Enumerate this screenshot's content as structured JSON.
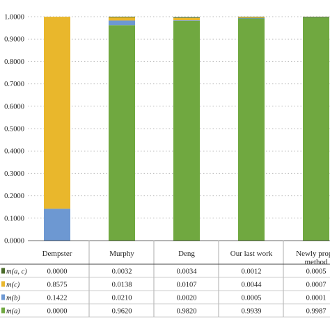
{
  "chart_data": {
    "type": "bar",
    "stacked": true,
    "categories": [
      "Dempster",
      "Murphy",
      "Deng",
      "Our last work",
      "Newly propo\nmethod"
    ],
    "category_lines": [
      [
        "Dempster"
      ],
      [
        "Murphy"
      ],
      [
        "Deng"
      ],
      [
        "Our last work"
      ],
      [
        "Newly propo",
        "method"
      ]
    ],
    "ylim": [
      0,
      1
    ],
    "ytick_values": [
      0,
      0.1,
      0.2,
      0.3,
      0.4,
      0.5,
      0.6,
      0.7,
      0.8,
      0.9,
      1.0
    ],
    "ytick_labels": [
      "0.0000",
      "0.1000",
      "0.2000",
      "0.3000",
      "0.4000",
      "0.5000",
      "0.6000",
      "0.7000",
      "0.8000",
      "0.9000",
      "1.0000"
    ],
    "grid": "horizontal dotted",
    "series_stack_order": [
      "m(a)",
      "m(b)",
      "m(c)",
      "m(a, c)"
    ],
    "series": [
      {
        "key": "m(a, c)",
        "label_main": "m",
        "label_args": "(a, c)",
        "color": "#4a6b2a",
        "values": [
          0.0,
          0.0032,
          0.0034,
          0.0012,
          0.0005
        ],
        "value_labels": [
          "0.0000",
          "0.0032",
          "0.0034",
          "0.0012",
          "0.0005"
        ]
      },
      {
        "key": "m(c)",
        "label_main": "m",
        "label_args": "(c)",
        "color": "#e9b72c",
        "values": [
          0.8575,
          0.0138,
          0.0107,
          0.0044,
          0.0007
        ],
        "value_labels": [
          "0.8575",
          "0.0138",
          "0.0107",
          "0.0044",
          "0.0007"
        ]
      },
      {
        "key": "m(b)",
        "label_main": "m",
        "label_args": "(b)",
        "color": "#6d98d2",
        "values": [
          0.1422,
          0.021,
          0.002,
          0.0005,
          0.0001
        ],
        "value_labels": [
          "0.1422",
          "0.0210",
          "0.0020",
          "0.0005",
          "0.0001"
        ]
      },
      {
        "key": "m(a)",
        "label_main": "m",
        "label_args": "(a)",
        "color": "#70a840",
        "values": [
          0.0,
          0.962,
          0.982,
          0.9939,
          0.9987
        ],
        "value_labels": [
          "0.0000",
          "0.9620",
          "0.9820",
          "0.9939",
          "0.9987"
        ]
      }
    ]
  }
}
